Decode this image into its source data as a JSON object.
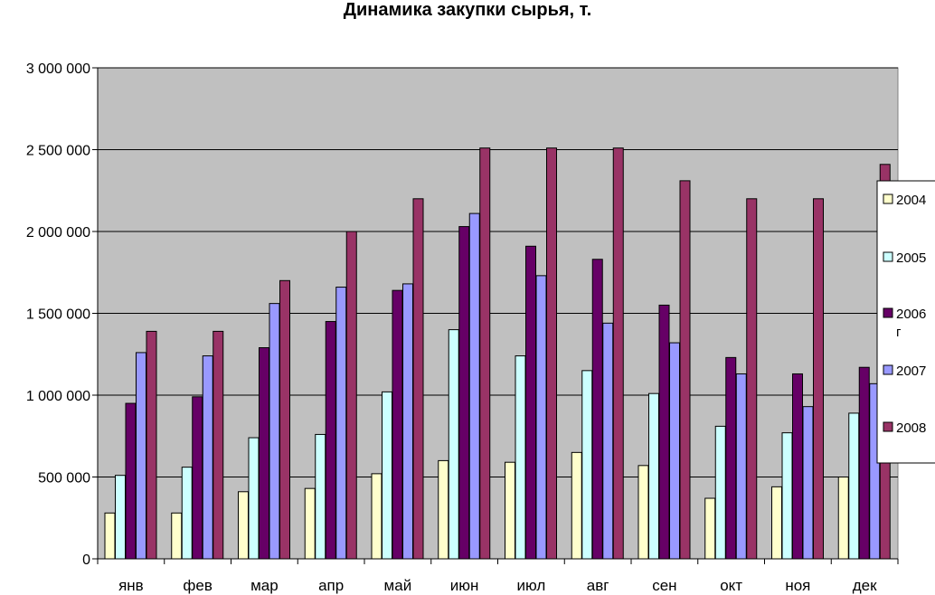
{
  "chart_data": {
    "type": "bar",
    "title": "Динамика закупки сырья, т.",
    "xlabel": "",
    "ylabel": "",
    "categories": [
      "янв",
      "фев",
      "мар",
      "апр",
      "май",
      "июн",
      "июл",
      "авг",
      "сен",
      "окт",
      "ноя",
      "дек"
    ],
    "ylim": [
      0,
      3000000
    ],
    "yticks": [
      0,
      500000,
      1000000,
      1500000,
      2000000,
      2500000,
      3000000
    ],
    "ytick_labels": [
      "0",
      "500 000",
      "1 000 000",
      "1 500 000",
      "2 000 000",
      "2 500 000",
      "3 000 000"
    ],
    "grid": true,
    "legend_position": "right",
    "plot_background": "#c0c0c0",
    "series": [
      {
        "name": "2004",
        "color": "#ffffcc",
        "values": [
          280000,
          280000,
          410000,
          430000,
          520000,
          600000,
          590000,
          650000,
          570000,
          370000,
          440000,
          500000
        ]
      },
      {
        "name": "2005",
        "color": "#ccffff",
        "values": [
          510000,
          560000,
          740000,
          760000,
          1020000,
          1400000,
          1240000,
          1150000,
          1010000,
          810000,
          770000,
          890000
        ]
      },
      {
        "name": "2006 г",
        "color": "#660066",
        "values": [
          950000,
          990000,
          1290000,
          1450000,
          1640000,
          2030000,
          1910000,
          1830000,
          1550000,
          1230000,
          1130000,
          1170000
        ]
      },
      {
        "name": "2007",
        "color": "#9999ff",
        "values": [
          1260000,
          1240000,
          1560000,
          1660000,
          1680000,
          2110000,
          1730000,
          1440000,
          1320000,
          1130000,
          930000,
          1070000
        ]
      },
      {
        "name": "2008",
        "color": "#993366",
        "values": [
          1390000,
          1390000,
          1700000,
          2000000,
          2200000,
          2510000,
          2510000,
          2510000,
          2310000,
          2200000,
          2200000,
          2410000
        ]
      }
    ]
  }
}
